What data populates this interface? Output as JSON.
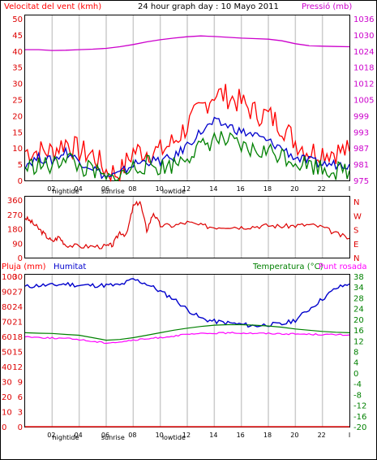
{
  "header": {
    "left_title": "Velocitat del vent (kmh)",
    "center_title": "24 hour graph day : 10 Mayo 2011",
    "right_title": "Pressió (mb)"
  },
  "bottom_header": {
    "rain_label": "Pluja (mm)",
    "humidity_label": "Humitat",
    "temp_label": "Temperatura (°C)",
    "dew_label": "Punt rosada"
  },
  "x_ticks": [
    "02",
    "04",
    "06",
    "08",
    "10",
    "12",
    "14",
    "16",
    "18",
    "20",
    "22",
    "I"
  ],
  "tide_marks": [
    {
      "label": "hightide",
      "at_hour": 3
    },
    {
      "label": "sunrise",
      "at_hour": 6.5
    },
    {
      "label": "lowtide",
      "at_hour": 11
    }
  ],
  "colors": {
    "wind_gust": "#ff0000",
    "wind_avg": "#0000cc",
    "wind_speed": "#008000",
    "pressure": "#cc00cc",
    "direction": "#dd0000",
    "humidity": "#0000cc",
    "temperature": "#008000",
    "dew": "#ff00ff",
    "rain": "#ff0000"
  },
  "chart_data": [
    {
      "type": "line",
      "title": "24 hour graph day : 10 Mayo 2011",
      "ylabel": "Velocitat del vent (kmh)",
      "ylim": [
        0,
        50
      ],
      "y_ticks": [
        0,
        5,
        10,
        15,
        20,
        25,
        30,
        35,
        40,
        45,
        50
      ],
      "y2label": "Pressió (mb)",
      "y2lim": [
        975,
        1035
      ],
      "y2_ticks": [
        975,
        981,
        987,
        993,
        999,
        1005,
        1012,
        1018,
        1024,
        1030,
        1036
      ],
      "x": [
        0,
        1,
        2,
        3,
        4,
        5,
        6,
        7,
        8,
        9,
        10,
        11,
        12,
        13,
        14,
        15,
        16,
        17,
        18,
        19,
        20,
        21,
        22,
        23,
        24
      ],
      "series": [
        {
          "key": "gust",
          "values": [
            9,
            9,
            9,
            12,
            9,
            8,
            3,
            2,
            9,
            9,
            9,
            12,
            17,
            22,
            27,
            26,
            24,
            21,
            20,
            17,
            12,
            9,
            9,
            9,
            9
          ]
        },
        {
          "key": "avg",
          "values": [
            5,
            7,
            6,
            9,
            6,
            4,
            1,
            2,
            5,
            6,
            6,
            7,
            11,
            15,
            18,
            17,
            15,
            14,
            12,
            10,
            7,
            6,
            5,
            5,
            5
          ]
        },
        {
          "key": "speed",
          "values": [
            4,
            5,
            4,
            8,
            4,
            3,
            0,
            1,
            4,
            5,
            4,
            5,
            8,
            10,
            13,
            12,
            10,
            9,
            9,
            8,
            6,
            5,
            4,
            3,
            3
          ]
        },
        {
          "key": "pressure",
          "values": [
            1023.5,
            1023.5,
            1023.2,
            1023.3,
            1023.5,
            1023.7,
            1024,
            1024.6,
            1025.4,
            1026.4,
            1027.2,
            1027.8,
            1028.3,
            1028.6,
            1028.4,
            1028.1,
            1027.8,
            1027.6,
            1027.4,
            1026.8,
            1025.7,
            1025,
            1024.8,
            1024.7,
            1024.6
          ]
        }
      ]
    },
    {
      "type": "line",
      "ylabel": "Direction",
      "ylim": [
        0,
        360
      ],
      "y_ticks": [
        0,
        90,
        180,
        270,
        360
      ],
      "y2_ticks": [
        "N",
        "W",
        "S",
        "E",
        "N"
      ],
      "x": [
        0,
        0.5,
        1,
        1.5,
        2,
        2.5,
        3,
        4,
        5,
        6,
        6.5,
        7,
        7.5,
        8,
        8.5,
        9,
        9.5,
        10,
        11,
        12,
        13,
        14,
        15,
        16,
        17,
        18,
        19,
        20,
        21,
        22,
        23,
        24
      ],
      "series": [
        {
          "key": "direction",
          "values": [
            250,
            220,
            180,
            140,
            100,
            130,
            80,
            70,
            70,
            70,
            80,
            160,
            140,
            320,
            350,
            170,
            280,
            200,
            200,
            220,
            200,
            190,
            195,
            190,
            195,
            200,
            195,
            200,
            205,
            190,
            150,
            120
          ]
        }
      ]
    },
    {
      "type": "line",
      "ylabel": "Pluja (mm)",
      "ylim": [
        0,
        100
      ],
      "y_ticks": [
        0,
        10,
        20,
        30,
        40,
        50,
        60,
        70,
        80,
        90,
        100
      ],
      "y_mid_label": "Humitat",
      "y_mid_ticks": [
        0,
        3,
        6,
        9,
        12,
        15,
        18,
        21,
        24,
        27,
        30
      ],
      "y2label": "Temperatura (°C)",
      "y2lim": [
        -20,
        40
      ],
      "y2_ticks": [
        -20,
        -16,
        -12,
        -8,
        -4,
        0,
        4,
        8,
        12,
        16,
        20,
        24,
        28,
        34,
        38
      ],
      "x": [
        0,
        1,
        2,
        3,
        4,
        5,
        6,
        7,
        8,
        9,
        10,
        11,
        12,
        13,
        14,
        15,
        16,
        17,
        18,
        19,
        20,
        21,
        22,
        23,
        24
      ],
      "series": [
        {
          "key": "humidity",
          "values": [
            93,
            94,
            94,
            95,
            94,
            94,
            94,
            94,
            98,
            95,
            90,
            85,
            78,
            72,
            70,
            69,
            68,
            67,
            68,
            68,
            71,
            78,
            85,
            92,
            95
          ]
        },
        {
          "key": "temperature",
          "values": [
            17.5,
            17.3,
            17.2,
            16.8,
            16.5,
            15.5,
            14.5,
            14.8,
            15.5,
            16.5,
            17.5,
            18.5,
            19.3,
            20,
            20.5,
            20.7,
            20.7,
            20.5,
            20.2,
            19.7,
            19,
            18.5,
            18,
            17.7,
            17.5
          ]
        },
        {
          "key": "dew",
          "values": [
            16,
            15.6,
            15.4,
            15.2,
            14.8,
            14,
            13.5,
            13.8,
            14.5,
            15,
            15.6,
            16.2,
            16.8,
            17.1,
            17.3,
            17.4,
            17.4,
            17.3,
            17.2,
            17.1,
            17,
            16.9,
            16.8,
            16.7,
            16.6
          ]
        },
        {
          "key": "rain",
          "values": [
            0,
            0,
            0,
            0,
            0,
            0,
            0,
            0,
            0,
            0,
            0,
            0,
            0,
            0,
            0,
            0,
            0,
            0,
            0,
            0,
            0,
            0,
            0,
            0,
            0
          ]
        }
      ]
    }
  ]
}
